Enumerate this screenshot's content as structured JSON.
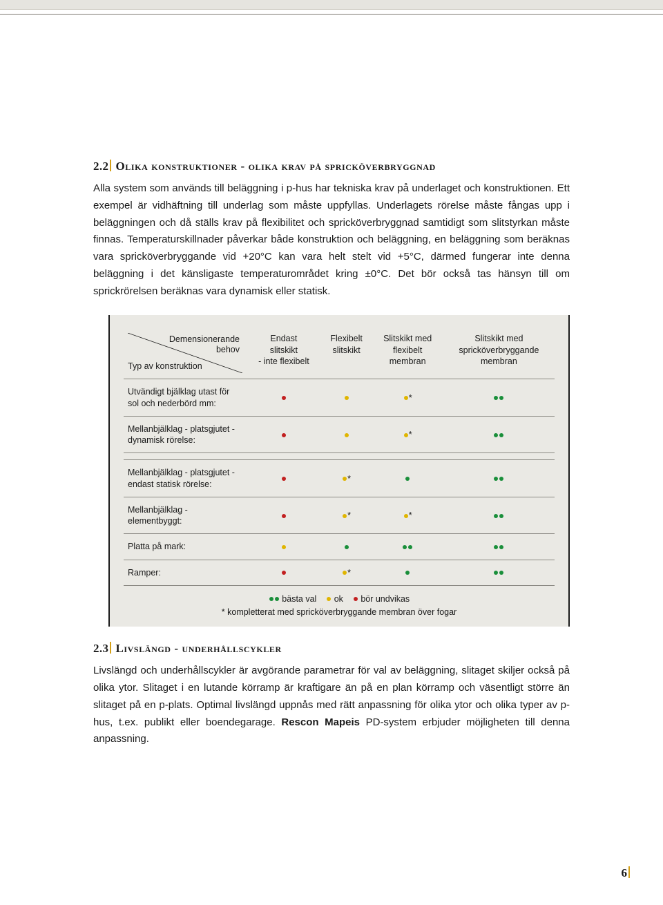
{
  "colors": {
    "accent": "#d4a018",
    "dot_green": "#1a8f3a",
    "dot_yellow": "#e0b500",
    "dot_red": "#c22020",
    "table_bg": "#eae9e4",
    "table_border": "#8a8882",
    "text": "#1a1a1a"
  },
  "section1": {
    "number": "2.2",
    "title": "Olika konstruktioner - olika krav på spricköverbryggnad",
    "para": "Alla system som används till beläggning i p-hus har tekniska krav på underlaget och konstruktionen. Ett exempel är vidhäftning till underlag som måste uppfyllas. Underlagets rörelse måste fångas upp i beläggningen och då ställs krav på flexibilitet och spricköverbryggnad samtidigt som slitstyrkan måste finnas. Temperaturskillnader påverkar både konstruktion och beläggning, en beläggning som beräknas vara spricköverbryggande vid +20°C kan vara helt stelt vid +5°C, därmed fungerar inte denna beläggning i det känsligaste temperaturområdet kring ±0°C. Det bör också tas hänsyn till om sprickrörelsen beräknas vara dynamisk eller statisk."
  },
  "table": {
    "header_diag_upper": "Demensionerande\nbehov",
    "header_diag_lower": "Typ av konstruktion",
    "columns": [
      "Endast\nslitskikt\n- inte flexibelt",
      "Flexibelt\nslitskikt",
      "Slitskikt med\nflexibelt\nmembran",
      "Slitskikt med\nspricköverbryggande\nmembran"
    ],
    "rows": [
      {
        "label": "Utvändigt bjälklag utast för sol och nederbörd mm:",
        "cells": [
          [
            "red"
          ],
          [
            "yellow"
          ],
          [
            "yellow",
            "*"
          ],
          [
            "green",
            "green"
          ]
        ]
      },
      {
        "label": "Mellanbjälklag - platsgjutet - dynamisk rörelse:",
        "cells": [
          [
            "red"
          ],
          [
            "yellow"
          ],
          [
            "yellow",
            "*"
          ],
          [
            "green",
            "green"
          ]
        ]
      },
      {
        "gap": true
      },
      {
        "label": "Mellanbjälklag - platsgjutet - endast statisk rörelse:",
        "cells": [
          [
            "red"
          ],
          [
            "yellow",
            "*"
          ],
          [
            "green"
          ],
          [
            "green",
            "green"
          ]
        ]
      },
      {
        "label": "Mellanbjälklag - elementbyggt:",
        "cells": [
          [
            "red"
          ],
          [
            "yellow",
            "*"
          ],
          [
            "yellow",
            "*"
          ],
          [
            "green",
            "green"
          ]
        ]
      },
      {
        "label": "Platta på mark:",
        "cells": [
          [
            "yellow"
          ],
          [
            "green"
          ],
          [
            "green",
            "green"
          ],
          [
            "green",
            "green"
          ]
        ]
      },
      {
        "label": "Ramper:",
        "cells": [
          [
            "red"
          ],
          [
            "yellow",
            "*"
          ],
          [
            "green"
          ],
          [
            "green",
            "green"
          ]
        ]
      }
    ],
    "legend": {
      "best": "bästa val",
      "ok": "ok",
      "avoid": "bör undvikas",
      "footnote": "* kompletterat med spricköverbryggande membran över fogar"
    }
  },
  "section2": {
    "number": "2.3",
    "title": "Livslängd - underhållscykler",
    "para_pre": "Livslängd och underhållscykler är avgörande parametrar för val av beläggning, slitaget skiljer också på olika ytor. Slitaget i en lutande körramp är kraftigare än på en plan körramp och väsentligt större än slitaget på en p-plats. Optimal livslängd uppnås med rätt anpassning för olika ytor och olika typer av p-hus, t.ex. publikt eller boendegarage. ",
    "brand": "Rescon Mapeis",
    "para_post": " PD-system erbjuder möjligheten till denna anpassning."
  },
  "page_number": "6"
}
